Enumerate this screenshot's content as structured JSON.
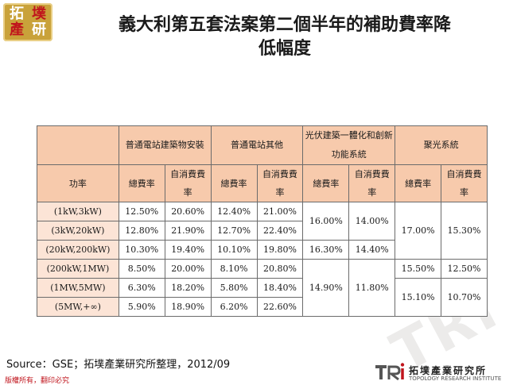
{
  "header": {
    "logo_chars": [
      "拓",
      "墣",
      "產",
      "研"
    ],
    "title_line1": "義大利第五套法案第二個半年的補助費率降",
    "title_line2": "低幅度"
  },
  "table": {
    "group_headers": [
      "普通電站建築物安裝",
      "普通電站其他",
      "光伏建築一體化和創新功能系統",
      "聚光系統"
    ],
    "row_header": "功率",
    "sub_headers": [
      "總費率",
      "自消費費率",
      "總費率",
      "自消費費率",
      "總費率",
      "自消費費率",
      "總費率",
      "自消費費率"
    ],
    "rows": [
      {
        "label": "(1kW,3kW)",
        "a1": "12.50%",
        "a2": "20.60%",
        "b1": "12.40%",
        "b2": "21.00%"
      },
      {
        "label": "(3kW,20kW)",
        "a1": "12.80%",
        "a2": "21.90%",
        "b1": "12.70%",
        "b2": "22.40%"
      },
      {
        "label": "(20kW,200kW)",
        "a1": "10.30%",
        "a2": "19.40%",
        "b1": "10.10%",
        "b2": "19.80%"
      },
      {
        "label": "(200kW,1MW)",
        "a1": "8.50%",
        "a2": "20.00%",
        "b1": "8.10%",
        "b2": "20.80%"
      },
      {
        "label": "(1MW,5MW)",
        "a1": "6.30%",
        "a2": "18.20%",
        "b1": "5.80%",
        "b2": "18.40%"
      },
      {
        "label": "(5MW,+∞)",
        "a1": "5.90%",
        "a2": "18.90%",
        "b1": "6.20%",
        "b2": "22.60%"
      }
    ],
    "bipv": {
      "r1_2_total": "16.00%",
      "r1_2_self": "14.00%",
      "r3_total": "16.30%",
      "r3_self": "14.40%",
      "r4_6_total": "14.90%",
      "r4_6_self": "11.80%"
    },
    "cpv": {
      "r1_3_total": "17.00%",
      "r1_3_self": "15.30%",
      "r4_total": "15.50%",
      "r4_self": "12.50%",
      "r5_6_total": "15.10%",
      "r5_6_self": "10.70%"
    }
  },
  "footer": {
    "source": "Source：GSE；拓墣產業研究所整理，2012/09",
    "copyright": "版權所有，翻印必究",
    "tri_name": "拓墣產業研究所",
    "tri_sub": "TOPOLOGY RESEARCH INSTITUTE",
    "watermark": "TRI"
  },
  "colors": {
    "header_fill": "#f7caac",
    "label_fill": "#fce4d6",
    "logo_gold": "#c9a23a",
    "brand_red": "#c0141c"
  }
}
